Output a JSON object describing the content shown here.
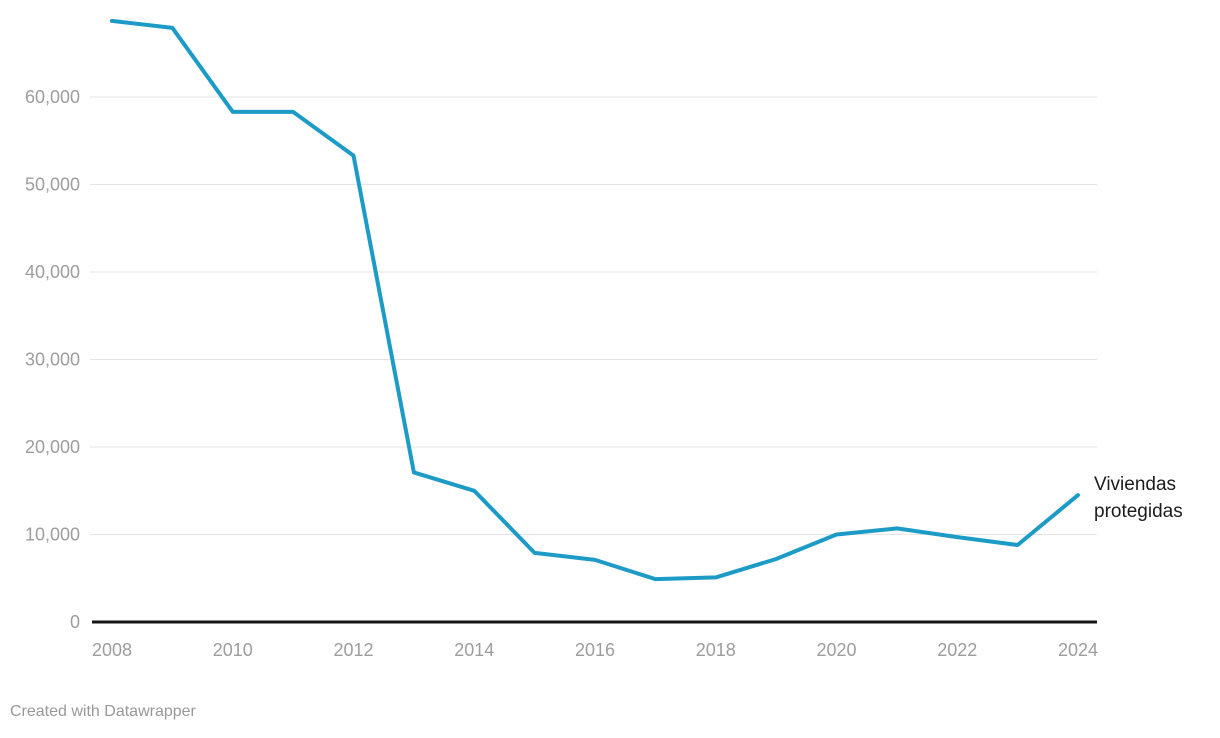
{
  "chart_data": {
    "type": "line",
    "title": "",
    "xlabel": "",
    "ylabel": "",
    "x": [
      2008,
      2009,
      2010,
      2011,
      2012,
      2013,
      2014,
      2015,
      2016,
      2017,
      2018,
      2019,
      2020,
      2021,
      2022,
      2023,
      2024
    ],
    "series": [
      {
        "name": "Viviendas protegidas",
        "values": [
          68700,
          67900,
          58300,
          58300,
          53300,
          17100,
          15000,
          7900,
          7100,
          4900,
          5100,
          7200,
          10000,
          10700,
          9700,
          8800,
          14500
        ]
      }
    ],
    "x_ticks": [
      2008,
      2010,
      2012,
      2014,
      2016,
      2018,
      2020,
      2022,
      2024
    ],
    "x_tick_labels": [
      "2008",
      "2010",
      "2012",
      "2014",
      "2016",
      "2018",
      "2020",
      "2022",
      "2024"
    ],
    "y_ticks": [
      0,
      10000,
      20000,
      30000,
      40000,
      50000,
      60000
    ],
    "y_tick_labels": [
      "0",
      "10,000",
      "20,000",
      "30,000",
      "40,000",
      "50,000",
      "60,000"
    ],
    "ylim": [
      0,
      71000
    ],
    "xlim": [
      2008,
      2024
    ],
    "grid": "horizontal",
    "legend_position": "end-of-line-label",
    "line_color": "#1d9bc7"
  },
  "footer": {
    "credit": "Created with Datawrapper"
  },
  "colors": {
    "background": "#ffffff",
    "line": "#1d9bc7",
    "grid": "#e5e5e5",
    "axis": "#141414",
    "tick_text": "#9d9d9d",
    "series_label_text": "#1c1c1c",
    "credit_text": "#999999"
  }
}
